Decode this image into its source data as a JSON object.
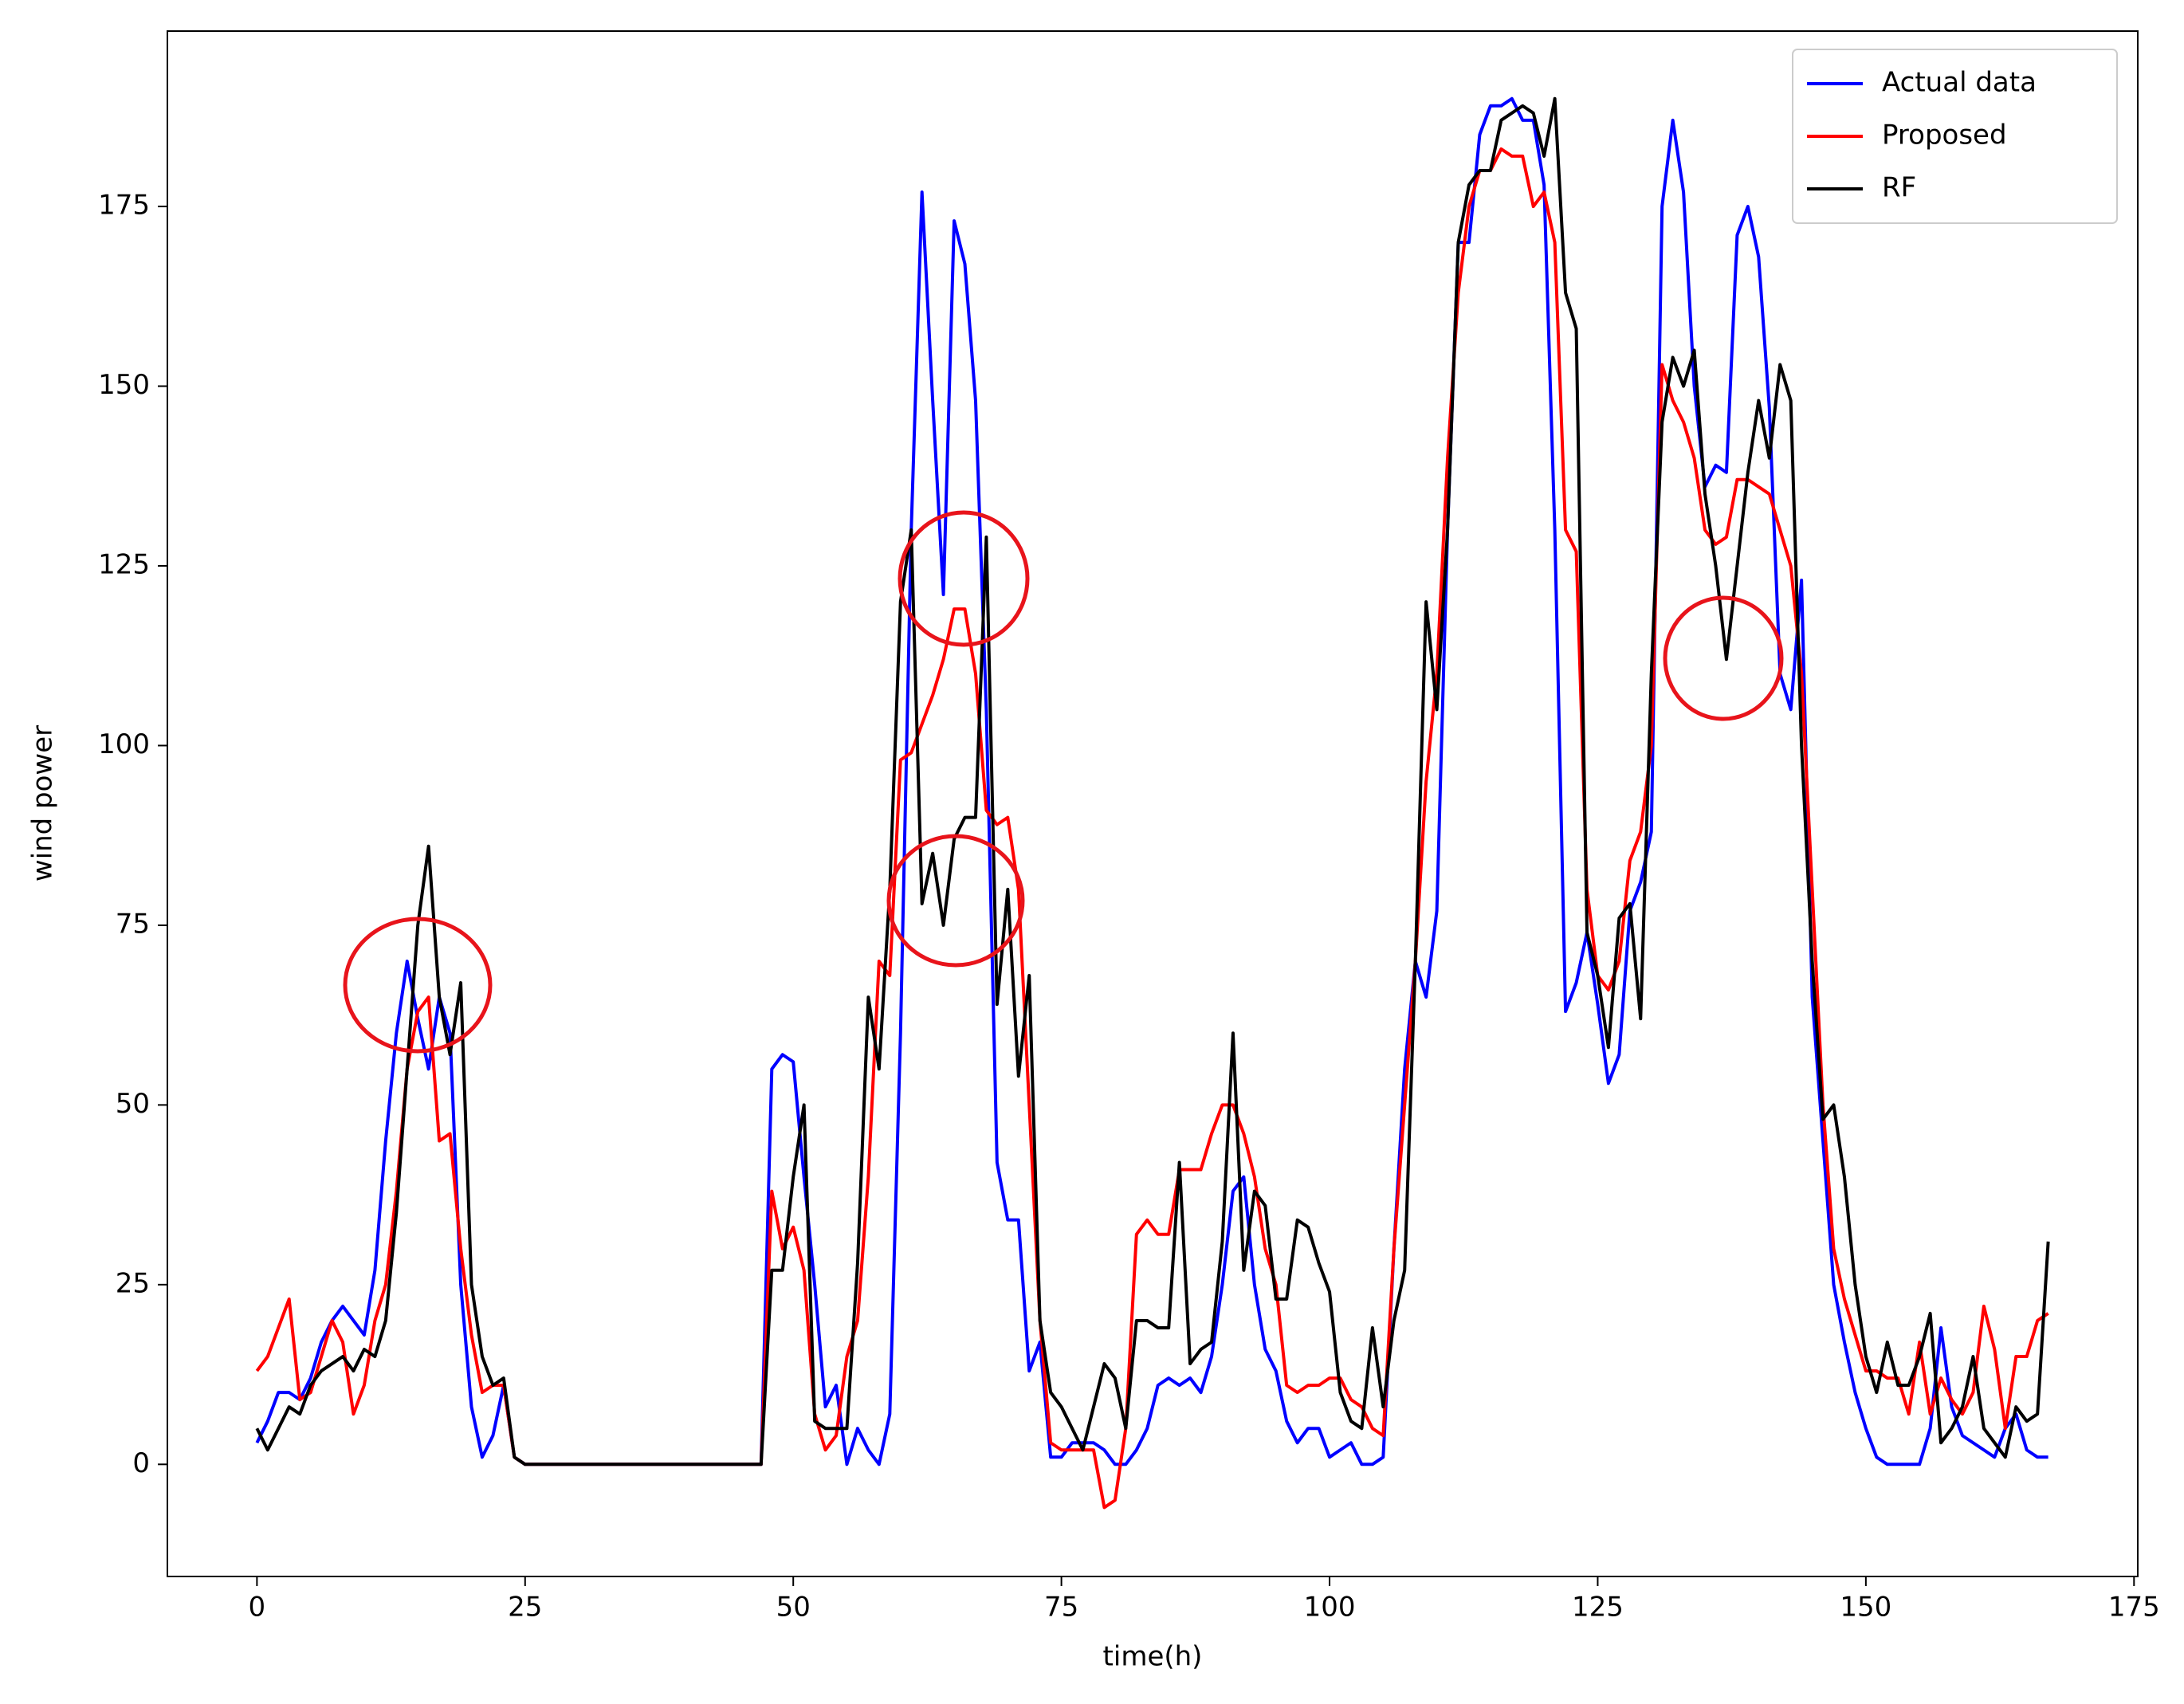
{
  "chart_data": {
    "type": "line",
    "x_label": "time(h)",
    "y_label": "wind power",
    "x": [
      0,
      1,
      2,
      3,
      4,
      5,
      6,
      7,
      8,
      9,
      10,
      11,
      12,
      13,
      14,
      15,
      16,
      17,
      18,
      19,
      20,
      21,
      22,
      23,
      24,
      25,
      26,
      27,
      28,
      29,
      30,
      31,
      32,
      33,
      34,
      35,
      36,
      37,
      38,
      39,
      40,
      41,
      42,
      43,
      44,
      45,
      46,
      47,
      48,
      49,
      50,
      51,
      52,
      53,
      54,
      55,
      56,
      57,
      58,
      59,
      60,
      61,
      62,
      63,
      64,
      65,
      66,
      67,
      68,
      69,
      70,
      71,
      72,
      73,
      74,
      75,
      76,
      77,
      78,
      79,
      80,
      81,
      82,
      83,
      84,
      85,
      86,
      87,
      88,
      89,
      90,
      91,
      92,
      93,
      94,
      95,
      96,
      97,
      98,
      99,
      100,
      101,
      102,
      103,
      104,
      105,
      106,
      107,
      108,
      109,
      110,
      111,
      112,
      113,
      114,
      115,
      116,
      117,
      118,
      119,
      120,
      121,
      122,
      123,
      124,
      125,
      126,
      127,
      128,
      129,
      130,
      131,
      132,
      133,
      134,
      135,
      136,
      137,
      138,
      139,
      140,
      141,
      142,
      143,
      144,
      145,
      146,
      147,
      148,
      149,
      150,
      151,
      152,
      153,
      154,
      155,
      156,
      157,
      158,
      159,
      160,
      161,
      162,
      163,
      164,
      165,
      166,
      167
    ],
    "series": [
      {
        "name": "Actual data",
        "color": "#0000ff",
        "values": [
          3,
          6,
          10,
          10,
          9,
          12,
          17,
          20,
          22,
          20,
          18,
          27,
          45,
          60,
          70,
          62,
          55,
          65,
          60,
          25,
          8,
          1,
          4,
          11,
          1,
          0,
          0,
          0,
          0,
          0,
          0,
          0,
          0,
          0,
          0,
          0,
          0,
          0,
          0,
          0,
          0,
          0,
          0,
          0,
          0,
          0,
          0,
          0,
          55,
          57,
          56,
          40,
          25,
          8,
          11,
          0,
          5,
          2,
          0,
          7,
          60,
          130,
          177,
          148,
          121,
          173,
          167,
          148,
          105,
          42,
          34,
          34,
          13,
          17,
          1,
          1,
          3,
          3,
          3,
          2,
          0,
          0,
          2,
          5,
          11,
          12,
          11,
          12,
          10,
          15,
          25,
          38,
          40,
          25,
          16,
          13,
          6,
          3,
          5,
          5,
          1,
          2,
          3,
          0,
          0,
          1,
          30,
          55,
          70,
          65,
          77,
          130,
          170,
          170,
          185,
          189,
          189,
          190,
          187,
          187,
          178,
          130,
          63,
          67,
          74,
          64,
          53,
          57,
          77,
          81,
          88,
          175,
          187,
          177,
          150,
          136,
          139,
          138,
          171,
          175,
          168,
          147,
          110,
          105,
          123,
          65,
          45,
          25,
          17,
          10,
          5,
          1,
          0,
          0,
          0,
          0,
          5,
          19,
          8,
          4,
          3,
          2,
          1,
          5,
          7,
          2,
          1,
          1
        ]
      },
      {
        "name": "Proposed",
        "color": "#ff0000",
        "values": [
          13,
          15,
          19,
          23,
          9,
          10,
          15,
          20,
          17,
          7,
          11,
          20,
          25,
          38,
          55,
          63,
          65,
          45,
          46,
          30,
          18,
          10,
          11,
          11,
          1,
          0,
          0,
          0,
          0,
          0,
          0,
          0,
          0,
          0,
          0,
          0,
          0,
          0,
          0,
          0,
          0,
          0,
          0,
          0,
          0,
          0,
          0,
          0,
          38,
          30,
          33,
          27,
          7,
          2,
          4,
          15,
          20,
          40,
          70,
          68,
          98,
          99,
          103,
          107,
          112,
          119,
          119,
          110,
          91,
          89,
          90,
          80,
          50,
          20,
          3,
          2,
          2,
          2,
          2,
          -6,
          -5,
          5,
          32,
          34,
          32,
          32,
          41,
          41,
          41,
          46,
          50,
          50,
          46,
          40,
          30,
          25,
          11,
          10,
          11,
          11,
          12,
          12,
          9,
          8,
          5,
          4,
          30,
          50,
          70,
          95,
          110,
          140,
          163,
          175,
          180,
          180,
          183,
          182,
          182,
          175,
          177,
          170,
          130,
          127,
          80,
          68,
          66,
          70,
          84,
          88,
          100,
          153,
          148,
          145,
          140,
          130,
          128,
          129,
          137,
          137,
          136,
          135,
          130,
          125,
          110,
          80,
          50,
          30,
          23,
          18,
          13,
          13,
          12,
          12,
          7,
          17,
          7,
          12,
          9,
          7,
          10,
          22,
          16,
          5,
          15,
          15,
          20,
          21
        ]
      },
      {
        "name": "RF",
        "color": "#000000",
        "values": [
          5,
          2,
          5,
          8,
          7,
          11,
          13,
          14,
          15,
          13,
          16,
          15,
          20,
          35,
          55,
          75,
          86,
          65,
          57,
          67,
          25,
          15,
          11,
          12,
          1,
          0,
          0,
          0,
          0,
          0,
          0,
          0,
          0,
          0,
          0,
          0,
          0,
          0,
          0,
          0,
          0,
          0,
          0,
          0,
          0,
          0,
          0,
          0,
          27,
          27,
          40,
          50,
          6,
          5,
          5,
          5,
          28,
          65,
          55,
          80,
          120,
          130,
          78,
          85,
          75,
          87,
          90,
          90,
          129,
          64,
          80,
          54,
          68,
          20,
          10,
          8,
          5,
          2,
          8,
          14,
          12,
          5,
          20,
          20,
          19,
          19,
          42,
          14,
          16,
          17,
          31,
          60,
          27,
          38,
          36,
          23,
          23,
          34,
          33,
          28,
          24,
          10,
          6,
          5,
          19,
          8,
          20,
          27,
          70,
          120,
          105,
          130,
          170,
          178,
          180,
          180,
          187,
          188,
          189,
          188,
          182,
          190,
          163,
          158,
          74,
          68,
          58,
          76,
          78,
          62,
          110,
          145,
          154,
          150,
          155,
          135,
          125,
          112,
          125,
          138,
          148,
          140,
          153,
          148,
          100,
          70,
          48,
          50,
          40,
          25,
          15,
          10,
          17,
          11,
          11,
          15,
          21,
          3,
          5,
          8,
          15,
          5,
          3,
          1,
          8,
          6,
          7,
          31
        ]
      }
    ],
    "xlim": [
      -8.35,
      175.35
    ],
    "xticks": [
      0,
      25,
      50,
      75,
      100,
      125,
      150,
      175
    ],
    "ylim": [
      -15.6,
      199.4
    ],
    "yticks": [
      0,
      25,
      50,
      75,
      100,
      125,
      150,
      175
    ],
    "legend": "upper right"
  }
}
